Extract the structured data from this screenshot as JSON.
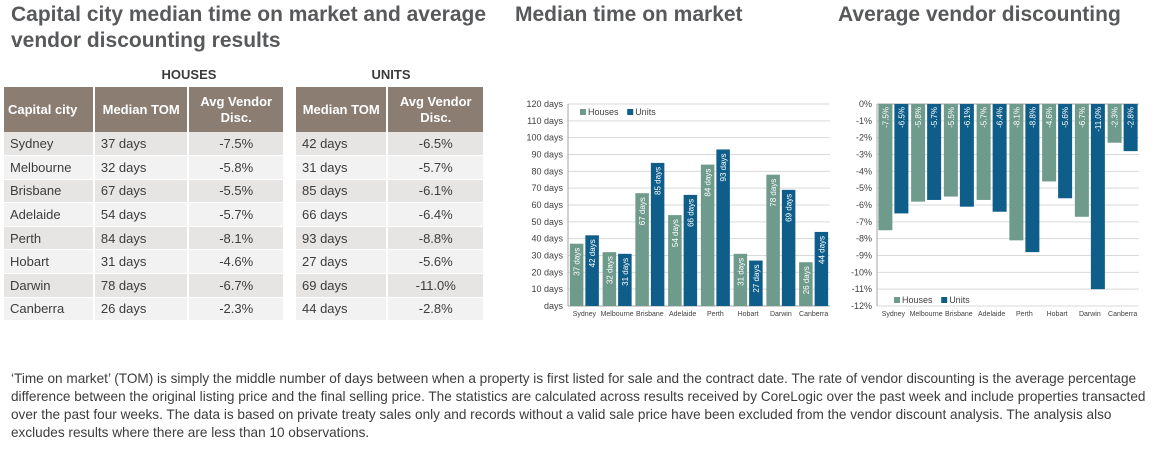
{
  "titles": {
    "main": "Capital city median time on market and average vendor discounting results",
    "tom_chart": "Median time on market",
    "disc_chart": "Average vendor discounting"
  },
  "table": {
    "houses_group": "HOUSES",
    "units_group": "UNITS",
    "headers": {
      "city": "Capital city",
      "tom": "Median TOM",
      "disc": "Avg Vendor Disc."
    },
    "rows": [
      {
        "city": "Sydney",
        "h_tom": "37 days",
        "h_disc": "-7.5%",
        "u_tom": "42 days",
        "u_disc": "-6.5%"
      },
      {
        "city": "Melbourne",
        "h_tom": "32 days",
        "h_disc": "-5.8%",
        "u_tom": "31 days",
        "u_disc": "-5.7%"
      },
      {
        "city": "Brisbane",
        "h_tom": "67 days",
        "h_disc": "-5.5%",
        "u_tom": "85 days",
        "u_disc": "-6.1%"
      },
      {
        "city": "Adelaide",
        "h_tom": "54 days",
        "h_disc": "-5.7%",
        "u_tom": "66 days",
        "u_disc": "-6.4%"
      },
      {
        "city": "Perth",
        "h_tom": "84 days",
        "h_disc": "-8.1%",
        "u_tom": "93 days",
        "u_disc": "-8.8%"
      },
      {
        "city": "Hobart",
        "h_tom": "31 days",
        "h_disc": "-4.6%",
        "u_tom": "27 days",
        "u_disc": "-5.6%"
      },
      {
        "city": "Darwin",
        "h_tom": "78 days",
        "h_disc": "-6.7%",
        "u_tom": "69 days",
        "u_disc": "-11.0%"
      },
      {
        "city": "Canberra",
        "h_tom": "26 days",
        "h_disc": "-2.3%",
        "u_tom": "44 days",
        "u_disc": "-2.8%"
      }
    ]
  },
  "chart_data": [
    {
      "type": "bar",
      "title": "Median time on market",
      "categories": [
        "Sydney",
        "Melbourne",
        "Brisbane",
        "Adelaide",
        "Perth",
        "Hobart",
        "Darwin",
        "Canberra"
      ],
      "series": [
        {
          "name": "Houses",
          "color": "#6e9b8c",
          "values": [
            37,
            32,
            67,
            54,
            84,
            31,
            78,
            26
          ],
          "labels": [
            "37 days",
            "32 days",
            "67 days",
            "54 days",
            "84 days",
            "31 days",
            "78 days",
            "26 days"
          ]
        },
        {
          "name": "Units",
          "color": "#0f5e8a",
          "values": [
            42,
            31,
            85,
            66,
            93,
            27,
            69,
            44
          ],
          "labels": [
            "42 days",
            "31 days",
            "85 days",
            "66 days",
            "93 days",
            "27 days",
            "69 days",
            "44 days"
          ]
        }
      ],
      "yticks": [
        "days",
        "10 days",
        "20 days",
        "30 days",
        "40 days",
        "50 days",
        "60 days",
        "70 days",
        "80 days",
        "90 days",
        "100 days",
        "110 days",
        "120 days"
      ],
      "ylim": [
        0,
        120
      ],
      "legend": "top-left",
      "grid": true
    },
    {
      "type": "bar",
      "title": "Average vendor discounting",
      "categories": [
        "Sydney",
        "Melbourne",
        "Brisbane",
        "Adelaide",
        "Perth",
        "Hobart",
        "Darwin",
        "Canberra"
      ],
      "series": [
        {
          "name": "Houses",
          "color": "#6e9b8c",
          "values": [
            -7.5,
            -5.8,
            -5.5,
            -5.7,
            -8.1,
            -4.6,
            -6.7,
            -2.3
          ],
          "labels": [
            "-7.5%",
            "-5.8%",
            "-5.5%",
            "-5.7%",
            "-8.1%",
            "-4.6%",
            "-6.7%",
            "-2.3%"
          ]
        },
        {
          "name": "Units",
          "color": "#0f5e8a",
          "values": [
            -6.5,
            -5.7,
            -6.1,
            -6.4,
            -8.8,
            -5.6,
            -11.0,
            -2.8
          ],
          "labels": [
            "-6.5%",
            "-5.7%",
            "-6.1%",
            "-6.4%",
            "-8.8%",
            "-5.6%",
            "-11.0%",
            "-2.8%"
          ]
        }
      ],
      "yticks": [
        "0%",
        "-1%",
        "-2%",
        "-3%",
        "-4%",
        "-5%",
        "-6%",
        "-7%",
        "-8%",
        "-9%",
        "-10%",
        "-11%",
        "-12%"
      ],
      "ylim": [
        -12,
        0
      ],
      "legend": "bottom-left",
      "grid": true
    }
  ],
  "note": "‘Time on market’ (TOM) is simply the middle number of days between when a property is first listed for sale and the contract date.  The rate of vendor discounting is the average percentage difference between the original listing price and the final selling price.  The statistics are calculated across results received by CoreLogic over the past week and include properties transacted over the past four weeks. The data is based on private treaty sales only and records without a valid sale price have been excluded from the vendor discount analysis. The analysis also excludes results where there are less than 10 observations."
}
